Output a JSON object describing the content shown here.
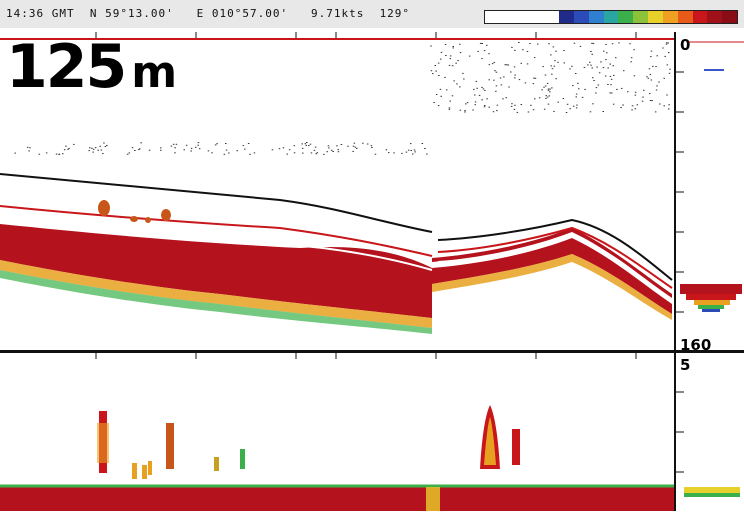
{
  "status": {
    "time": "14:36 GMT",
    "latitude": "N 59°13.00'",
    "longitude": "E 010°57.00'",
    "speed": "9.71kts",
    "heading": "129°"
  },
  "color_scale": [
    "#ffffff",
    "#ffffff",
    "#ffffff",
    "#ffffff",
    "#ffffff",
    "#1f2a8a",
    "#2a4bb8",
    "#2f7fd0",
    "#2aa6a0",
    "#3bb04a",
    "#8cc23a",
    "#e8d02a",
    "#f0a020",
    "#e85a1a",
    "#c8161a",
    "#a01018",
    "#8a0c14"
  ],
  "depth_readout": {
    "value": "125",
    "unit": "m"
  },
  "upper_scale": {
    "top": "0",
    "bottom": "160"
  },
  "lower_scale": {
    "top": "5"
  },
  "colors": {
    "sea_bottom": "#b4121c",
    "fish_echo": "#c8161a",
    "line": "#111111",
    "accent": "#3a56c8"
  }
}
